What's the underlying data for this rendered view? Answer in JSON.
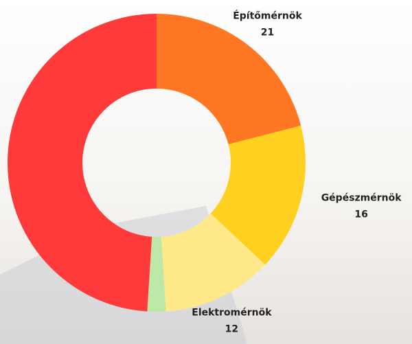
{
  "chart_data": {
    "type": "donut",
    "categories": [
      "Építőmérnök",
      "Gépészmérnök",
      "Elektromérnök",
      null,
      null
    ],
    "values": [
      21,
      16,
      12,
      2,
      49
    ],
    "colors": [
      "#ff7722",
      "#ffd020",
      "#ffe88a",
      "#bde8a8",
      "#ff3a3a"
    ]
  }
}
